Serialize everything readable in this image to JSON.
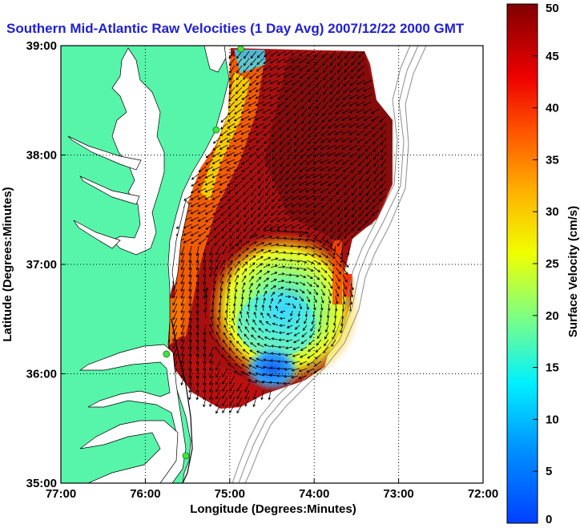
{
  "chart_data": {
    "type": "heatmap",
    "title": "Southern Mid-Atlantic Raw Velocities (1 Day Avg) 2007/12/22 2000 GMT",
    "xlabel": "Longitude (Degrees:Minutes)",
    "ylabel": "Latitude (Degrees:Minutes)",
    "colorbar_label": "Surface Velocity (cm/s)",
    "xlim": [
      -77,
      -72
    ],
    "ylim": [
      35,
      39
    ],
    "x_ticks": [
      {
        "value": -77,
        "label": "77:00"
      },
      {
        "value": -76,
        "label": "76:00"
      },
      {
        "value": -75,
        "label": "75:00"
      },
      {
        "value": -74,
        "label": "74:00"
      },
      {
        "value": -73,
        "label": "73:00"
      },
      {
        "value": -72,
        "label": "72:00"
      }
    ],
    "y_ticks": [
      {
        "value": 35,
        "label": "35:00"
      },
      {
        "value": 36,
        "label": "36:00"
      },
      {
        "value": 37,
        "label": "37:00"
      },
      {
        "value": 38,
        "label": "38:00"
      },
      {
        "value": 39,
        "label": "39:00"
      }
    ],
    "colorbar_range": [
      0,
      50
    ],
    "colorbar_ticks": [
      0,
      5,
      10,
      15,
      20,
      25,
      30,
      35,
      40,
      45,
      50
    ],
    "grid": true,
    "stations": [
      {
        "lon": -74.87,
        "lat": 38.97
      },
      {
        "lon": -75.16,
        "lat": 38.23
      },
      {
        "lon": -75.75,
        "lat": 36.18
      },
      {
        "lon": -75.52,
        "lat": 35.25
      }
    ],
    "colors": {
      "land": "#57f5aa",
      "title": "#1f1fd6",
      "station": "#44e044"
    }
  }
}
